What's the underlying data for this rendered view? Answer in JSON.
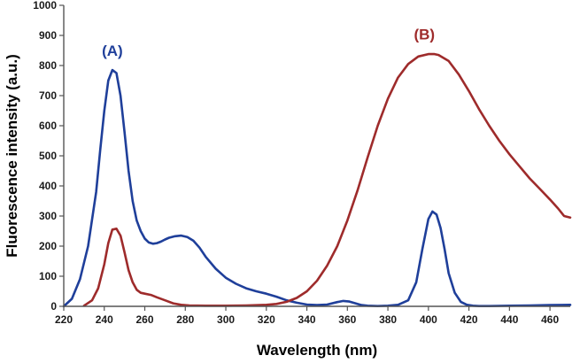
{
  "chart_data": {
    "type": "line",
    "title": "",
    "xlabel": "Wavelength (nm)",
    "ylabel": "Fluorescence intensity (a.u.)",
    "xlim": [
      220,
      470
    ],
    "ylim": [
      0,
      1000
    ],
    "xticks": [
      220,
      240,
      260,
      280,
      300,
      320,
      340,
      360,
      380,
      400,
      420,
      440,
      460
    ],
    "yticks": [
      0,
      100,
      200,
      300,
      400,
      500,
      600,
      700,
      800,
      900,
      1000
    ],
    "grid": false,
    "series": [
      {
        "name": "(A)",
        "label": "(A)",
        "color": "#1f3f9a",
        "label_at": [
          244,
          850
        ],
        "x": [
          220,
          224,
          228,
          232,
          236,
          238,
          240,
          242,
          244,
          246,
          248,
          250,
          252,
          254,
          256,
          258,
          260,
          262,
          264,
          266,
          268,
          270,
          272,
          275,
          278,
          281,
          284,
          287,
          290,
          295,
          300,
          305,
          310,
          315,
          320,
          325,
          330,
          335,
          340,
          345,
          350,
          355,
          358,
          361,
          364,
          367,
          370,
          375,
          380,
          385,
          390,
          394,
          397,
          400,
          402,
          404,
          406,
          408,
          410,
          413,
          416,
          419,
          422,
          425,
          430,
          440,
          450,
          460,
          470
        ],
        "y": [
          0,
          25,
          90,
          200,
          380,
          520,
          650,
          750,
          785,
          775,
          700,
          580,
          450,
          350,
          285,
          250,
          225,
          212,
          208,
          210,
          215,
          222,
          228,
          233,
          235,
          230,
          218,
          195,
          165,
          125,
          95,
          75,
          60,
          50,
          42,
          32,
          20,
          12,
          6,
          4,
          6,
          14,
          18,
          16,
          10,
          4,
          2,
          1,
          2,
          5,
          20,
          80,
          190,
          290,
          315,
          305,
          260,
          190,
          110,
          45,
          15,
          5,
          2,
          1,
          1,
          2,
          3,
          4,
          5
        ]
      },
      {
        "name": "(B)",
        "label": "(B)",
        "color": "#9e2b2b",
        "label_at": [
          398,
          905
        ],
        "x": [
          230,
          234,
          237,
          240,
          242,
          244,
          246,
          248,
          250,
          252,
          254,
          256,
          258,
          260,
          263,
          266,
          270,
          274,
          278,
          282,
          290,
          300,
          310,
          320,
          325,
          330,
          335,
          340,
          345,
          350,
          355,
          360,
          365,
          370,
          375,
          380,
          385,
          390,
          395,
          400,
          403,
          405,
          410,
          415,
          420,
          425,
          430,
          435,
          440,
          445,
          450,
          455,
          460,
          464,
          467,
          470
        ],
        "y": [
          2,
          20,
          60,
          140,
          210,
          255,
          258,
          235,
          180,
          120,
          80,
          55,
          45,
          42,
          38,
          30,
          20,
          10,
          5,
          3,
          2,
          2,
          3,
          5,
          8,
          15,
          28,
          50,
          85,
          135,
          200,
          285,
          385,
          495,
          600,
          690,
          760,
          805,
          830,
          838,
          838,
          835,
          815,
          770,
          715,
          655,
          600,
          550,
          505,
          465,
          425,
          390,
          355,
          325,
          300,
          295
        ]
      }
    ]
  }
}
